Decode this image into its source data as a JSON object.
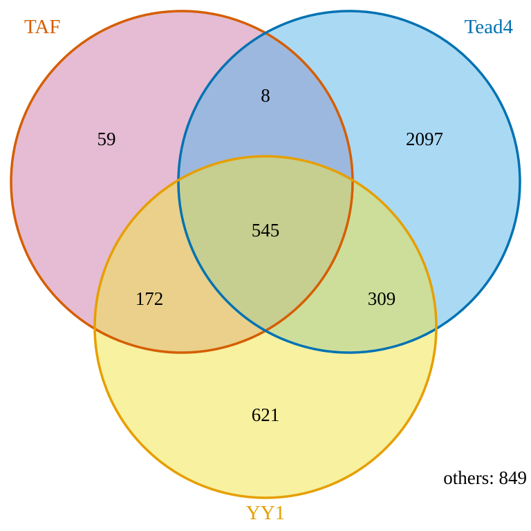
{
  "sets": [
    {
      "key": "taf",
      "label": "TAF",
      "fill": "#cc79a7",
      "stroke": "#d55e00"
    },
    {
      "key": "tead4",
      "label": "Tead4",
      "fill": "#56b4e9",
      "stroke": "#0072b2"
    },
    {
      "key": "yy1",
      "label": "YY1",
      "fill": "#f0e442",
      "stroke": "#e69f00"
    }
  ],
  "regions": {
    "taf_only": "59",
    "tead4_only": "2097",
    "yy1_only": "621",
    "taf_tead4_only": "8",
    "taf_yy1_only": "172",
    "tead4_yy1_only": "309",
    "all_three": "545"
  },
  "others": "others: 849"
}
